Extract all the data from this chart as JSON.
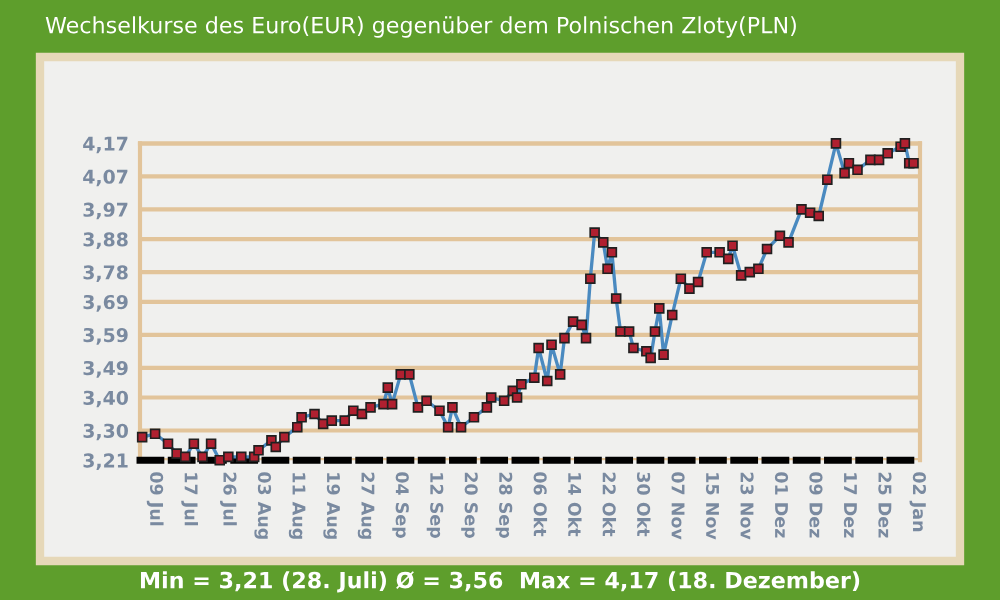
{
  "chart_data": {
    "type": "line",
    "title": "Wechselkurse des Euro(EUR) gegenüber dem Polnischen Zloty(PLN)",
    "annotations": [
      "Min = 3,21 (28. Juli) Ø = 3,56  Max = 4,17 (18. Dezember)"
    ],
    "categories": [
      null,
      null,
      null,
      "09 Jul",
      null,
      null,
      null,
      null,
      null,
      null,
      null,
      "17 Jul",
      null,
      null,
      null,
      null,
      null,
      null,
      null,
      null,
      "26 Jul",
      null,
      null,
      null,
      null,
      null,
      null,
      null,
      "03 Aug",
      null,
      null,
      null,
      null,
      null,
      null,
      null,
      "11 Aug",
      null,
      null,
      null,
      null,
      null,
      null,
      null,
      "19 Aug",
      null,
      null,
      null,
      null,
      null,
      null,
      null,
      "27 Aug",
      null,
      null,
      null,
      null,
      null,
      null,
      null,
      "04 Sep",
      null,
      null,
      null,
      null,
      null,
      null,
      null,
      "12 Sep",
      null,
      null,
      null,
      null,
      null,
      null,
      null,
      "20 Sep",
      null,
      null,
      null,
      null,
      null,
      null,
      null,
      "28 Sep",
      null,
      null,
      null,
      null,
      null,
      null,
      null,
      "06 Okt",
      null,
      null,
      null,
      null,
      null,
      null,
      null,
      "14 Okt",
      null,
      null,
      null,
      null,
      null,
      null,
      null,
      "22 Okt",
      null,
      null,
      null,
      null,
      null,
      null,
      null,
      "30 Okt",
      null,
      null,
      null,
      null,
      null,
      null,
      null,
      "07 Nov",
      null,
      null,
      null,
      null,
      null,
      null,
      null,
      "15 Nov",
      null,
      null,
      null,
      null,
      null,
      null,
      null,
      "23 Nov",
      null,
      null,
      null,
      null,
      null,
      null,
      null,
      "01 Dez",
      null,
      null,
      null,
      null,
      null,
      null,
      null,
      "09 Dez",
      null,
      null,
      null,
      null,
      null,
      null,
      null,
      "17 Dez",
      null,
      null,
      null,
      null,
      null,
      null,
      null,
      "25 Dez",
      null,
      null,
      null,
      null,
      null,
      null,
      null,
      "02 Jan"
    ],
    "series": [
      {
        "color": "#4a8ac0",
        "values": [
          3.28,
          null,
          null,
          3.29,
          null,
          null,
          3.26,
          null,
          3.23,
          null,
          3.22,
          null,
          3.26,
          null,
          3.22,
          null,
          3.26,
          null,
          3.21,
          null,
          3.22,
          null,
          null,
          3.22,
          null,
          null,
          3.22,
          3.24,
          null,
          null,
          3.27,
          3.25,
          null,
          3.28,
          null,
          null,
          3.31,
          3.34,
          null,
          null,
          3.35,
          null,
          3.32,
          null,
          3.33,
          null,
          null,
          3.33,
          null,
          3.36,
          null,
          3.35,
          null,
          3.37,
          null,
          null,
          3.38,
          3.43,
          3.38,
          null,
          3.47,
          null,
          3.47,
          null,
          3.37,
          null,
          3.39,
          null,
          null,
          3.36,
          null,
          3.31,
          3.37,
          null,
          3.31,
          null,
          null,
          3.34,
          null,
          null,
          3.37,
          3.4,
          null,
          null,
          3.39,
          null,
          3.42,
          3.4,
          3.44,
          null,
          null,
          3.46,
          3.55,
          null,
          3.45,
          3.56,
          null,
          3.47,
          3.58,
          null,
          3.63,
          null,
          3.62,
          3.58,
          3.76,
          3.9,
          null,
          3.87,
          3.79,
          3.84,
          3.7,
          3.6,
          null,
          3.6,
          3.55,
          null,
          null,
          3.54,
          3.52,
          3.6,
          3.67,
          3.53,
          null,
          3.65,
          null,
          3.76,
          null,
          3.73,
          null,
          3.75,
          null,
          3.84,
          null,
          null,
          3.84,
          null,
          3.82,
          3.86,
          null,
          3.77,
          null,
          3.78,
          null,
          3.79,
          null,
          3.85,
          null,
          null,
          3.89,
          null,
          3.87,
          null,
          null,
          3.97,
          null,
          3.96,
          null,
          3.95,
          null,
          4.06,
          null,
          4.17,
          null,
          4.08,
          4.11,
          null,
          4.09,
          null,
          null,
          4.12,
          null,
          4.12,
          null,
          4.14,
          null,
          null,
          4.16,
          4.17,
          4.11,
          4.11,
          null
        ]
      }
    ],
    "ylim": [
      3.21,
      4.17
    ],
    "yticks": [
      {
        "value": 3.21,
        "label": "3,21"
      },
      {
        "value": 3.3,
        "label": "3,30"
      },
      {
        "value": 3.4,
        "label": "3,40"
      },
      {
        "value": 3.49,
        "label": "3,49"
      },
      {
        "value": 3.59,
        "label": "3,59"
      },
      {
        "value": 3.69,
        "label": "3,69"
      },
      {
        "value": 3.78,
        "label": "3,78"
      },
      {
        "value": 3.88,
        "label": "3,88"
      },
      {
        "value": 3.97,
        "label": "3,97"
      },
      {
        "value": 4.07,
        "label": "4,07"
      },
      {
        "value": 4.17,
        "label": "4,17"
      }
    ],
    "grid": "y",
    "marker": "square",
    "line_style": "solid"
  }
}
